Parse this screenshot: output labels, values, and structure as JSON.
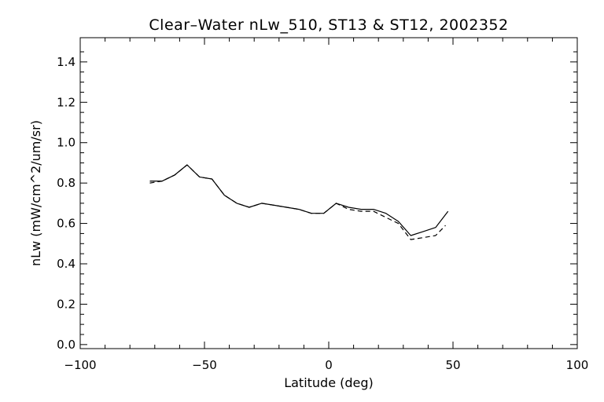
{
  "chart_data": {
    "type": "line",
    "title": "Clear–Water nLw_510, ST13 & ST12, 2002352",
    "xlabel": "Latitude (deg)",
    "ylabel": "nLw (mW/cm^2/um/sr)",
    "xlim": [
      -100,
      100
    ],
    "ylim": [
      -0.02,
      1.52
    ],
    "xticks": [
      -100,
      -50,
      0,
      50,
      100
    ],
    "xtick_labels": [
      "−100",
      "−50",
      "0",
      "50",
      "100"
    ],
    "yticks": [
      0.0,
      0.2,
      0.4,
      0.6,
      0.8,
      1.0,
      1.2,
      1.4
    ],
    "ytick_labels": [
      "0.0",
      "0.2",
      "0.4",
      "0.6",
      "0.8",
      "1.0",
      "1.2",
      "1.4"
    ],
    "grid": false,
    "colors": {
      "line": "#000000",
      "background": "#ffffff"
    },
    "series": [
      {
        "style": "solid",
        "x": [
          -72,
          -67,
          -62,
          -57,
          -52,
          -47,
          -42,
          -37,
          -32,
          -27,
          -22,
          -17,
          -12,
          -7,
          -2,
          3,
          8,
          13,
          18,
          23,
          28,
          33,
          38,
          43,
          48
        ],
        "y": [
          0.81,
          0.81,
          0.84,
          0.89,
          0.83,
          0.82,
          0.74,
          0.7,
          0.68,
          0.7,
          0.69,
          0.68,
          0.67,
          0.65,
          0.65,
          0.7,
          0.68,
          0.67,
          0.67,
          0.65,
          0.61,
          0.54,
          0.56,
          0.58,
          0.66
        ]
      },
      {
        "style": "dashed",
        "x": [
          -72,
          -67,
          -62,
          -57,
          -52,
          -47,
          -42,
          -37,
          -32,
          -27,
          -22,
          -17,
          -12,
          -7,
          -2,
          3,
          8,
          13,
          18,
          23,
          28,
          33,
          38,
          43,
          47
        ],
        "y": [
          0.8,
          0.81,
          0.84,
          0.89,
          0.83,
          0.82,
          0.74,
          0.7,
          0.68,
          0.7,
          0.69,
          0.68,
          0.67,
          0.65,
          0.65,
          0.7,
          0.67,
          0.66,
          0.66,
          0.63,
          0.6,
          0.52,
          0.53,
          0.54,
          0.59
        ]
      }
    ]
  }
}
